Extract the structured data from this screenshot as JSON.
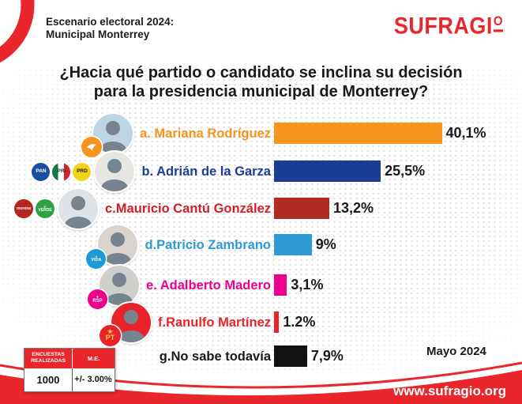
{
  "colors": {
    "brand_red": "#e8262c",
    "ink": "#1a1a1a"
  },
  "header": {
    "kicker_line1": "Escenario electoral 2024:",
    "kicker_line2": "Municipal Monterrey",
    "logo_main": "SUFRAGI",
    "logo_ordinal": "O"
  },
  "title": {
    "line1": "¿Hacia qué partido o candidato se inclina su decisión",
    "line2": "para la presidencia municipal de Monterrey?"
  },
  "chart_data": {
    "type": "bar",
    "orientation": "horizontal",
    "unit": "%",
    "title": "¿Hacia qué partido o candidato se inclina su decisión para la presidencia municipal de Monterrey?",
    "categories": [
      "a. Mariana Rodríguez",
      "b. Adrián de la Garza",
      "c.Mauricio Cantú González",
      "d.Patricio Zambrano",
      "e. Adalberto Madero",
      "f.Ranulfo Martínez",
      "g.No sabe todavía"
    ],
    "values": [
      40.1,
      25.5,
      13.2,
      9,
      3.1,
      1.2,
      7.9
    ],
    "value_labels": [
      "40,1%",
      "25,5%",
      "13,2%",
      "9%",
      "3,1%",
      "1.2%",
      "7,9%"
    ],
    "bar_colors": [
      "#f7941e",
      "#1b3e94",
      "#b02b20",
      "#2e9bd6",
      "#ec008c",
      "#e8242a",
      "#111111"
    ],
    "parties_per_candidate": [
      [
        "MC"
      ],
      [
        "PAN",
        "PRI",
        "PRD"
      ],
      [
        "MORENA",
        "VERDE"
      ],
      [
        "VIDA"
      ],
      [
        "RSP"
      ],
      [
        "PT"
      ],
      []
    ],
    "xlim": [
      0,
      45
    ],
    "grid": false,
    "legend": false
  },
  "rows": [
    {
      "label": "a. Mariana Rodríguez",
      "label_color": "#f7941e",
      "value": 40.1,
      "value_label": "40,1%",
      "bar_color": "#f7941e",
      "photo": true,
      "photo_bg": "#bdd5e4",
      "badges": [
        {
          "name": "mc-party-logo",
          "icon": "mc-eagle-icon",
          "bg": "#f7941e",
          "fg": "#ffffff",
          "text": "",
          "size": 26,
          "overlay": true
        }
      ]
    },
    {
      "label": "b. Adrián de la Garza",
      "label_color": "#1b3e94",
      "value": 25.5,
      "value_label": "25,5%",
      "bar_color": "#1b3e94",
      "photo": true,
      "photo_bg": "#e6e6e2",
      "badges": [
        {
          "name": "pan-party-logo",
          "text": "PAN",
          "bg": "#1a4fa0",
          "fg": "#ffffff",
          "size": 23,
          "font": 6.5
        },
        {
          "name": "pri-party-logo",
          "text": "PRI",
          "bg": "linear-gradient(90deg,#0e7a3c 33%,#ffffff 33%,#ffffff 66%,#d6222a 66%)",
          "fg": "#143b1e",
          "size": 23,
          "font": 6.5
        },
        {
          "name": "prd-party-logo",
          "text": "PRD",
          "bg": "#f2d41c",
          "fg": "#1a1a1a",
          "size": 23,
          "font": 6.5
        }
      ]
    },
    {
      "label": "c.Mauricio Cantú González",
      "label_color": "#ce2029",
      "value": 13.2,
      "value_label": "13,2%",
      "bar_color": "#b02b20",
      "photo": true,
      "photo_bg": "#dde3e7",
      "badges": [
        {
          "name": "morena-party-logo",
          "text": "morena",
          "bg": "#b5261e",
          "fg": "#ffffff",
          "size": 24,
          "font": 5
        },
        {
          "name": "verde-party-logo",
          "text": "VERDE",
          "bg": "#2fa343",
          "fg": "#ffffff",
          "size": 24,
          "font": 5,
          "accent_glyph": "✓",
          "accent_color": "#ffffff"
        }
      ]
    },
    {
      "label": "d.Patricio Zambrano",
      "label_color": "#2e9bd6",
      "value": 9,
      "value_label": "9%",
      "bar_color": "#2e9bd6",
      "photo": true,
      "photo_bg": "#d8d3cc",
      "badges": [
        {
          "name": "vida-party-logo",
          "text": "VIDA",
          "bg": "#1b9cd8",
          "fg": "#ffffff",
          "size": 25,
          "font": 5.5,
          "accent_glyph": "●",
          "accent_color": "#f8d24a",
          "overlay": true
        }
      ]
    },
    {
      "label": "e. Adalberto Madero",
      "label_color": "#ec008c",
      "value": 3.1,
      "value_label": "3,1%",
      "bar_color": "#ec008c",
      "photo": true,
      "photo_bg": "#cfcfcb",
      "badges": [
        {
          "name": "rsp-party-logo",
          "text": "RSP",
          "bg": "#ec008c",
          "fg": "#ffffff",
          "size": 25,
          "font": 6,
          "accent_glyph": "♦",
          "accent_color": "#ffffff",
          "overlay": true
        }
      ]
    },
    {
      "label": "f.Ranulfo Martínez",
      "label_color": "#e8242a",
      "value": 1.2,
      "value_label": "1.2%",
      "bar_color": "#e8242a",
      "photo": true,
      "photo_bg": "#e8242a",
      "badges": [
        {
          "name": "pt-party-logo",
          "text": "PT",
          "bg": "#e8242a",
          "fg": "#f8d24a",
          "size": 27,
          "font": 9,
          "accent_glyph": "★",
          "accent_color": "#f8d24a",
          "overlay": true
        }
      ]
    },
    {
      "label": "g.No sabe todavía",
      "label_color": "#1a1a1a",
      "value": 7.9,
      "value_label": "7,9%",
      "bar_color": "#111111",
      "photo": false,
      "badges": []
    }
  ],
  "stats": {
    "col1_header": "ENCUESTAS REALIZADAS",
    "col2_header": "M.E.",
    "col1_value": "1000",
    "col2_value": "+/- 3.00%"
  },
  "date_label": "Mayo 2024",
  "website": "www.sufragio.org"
}
